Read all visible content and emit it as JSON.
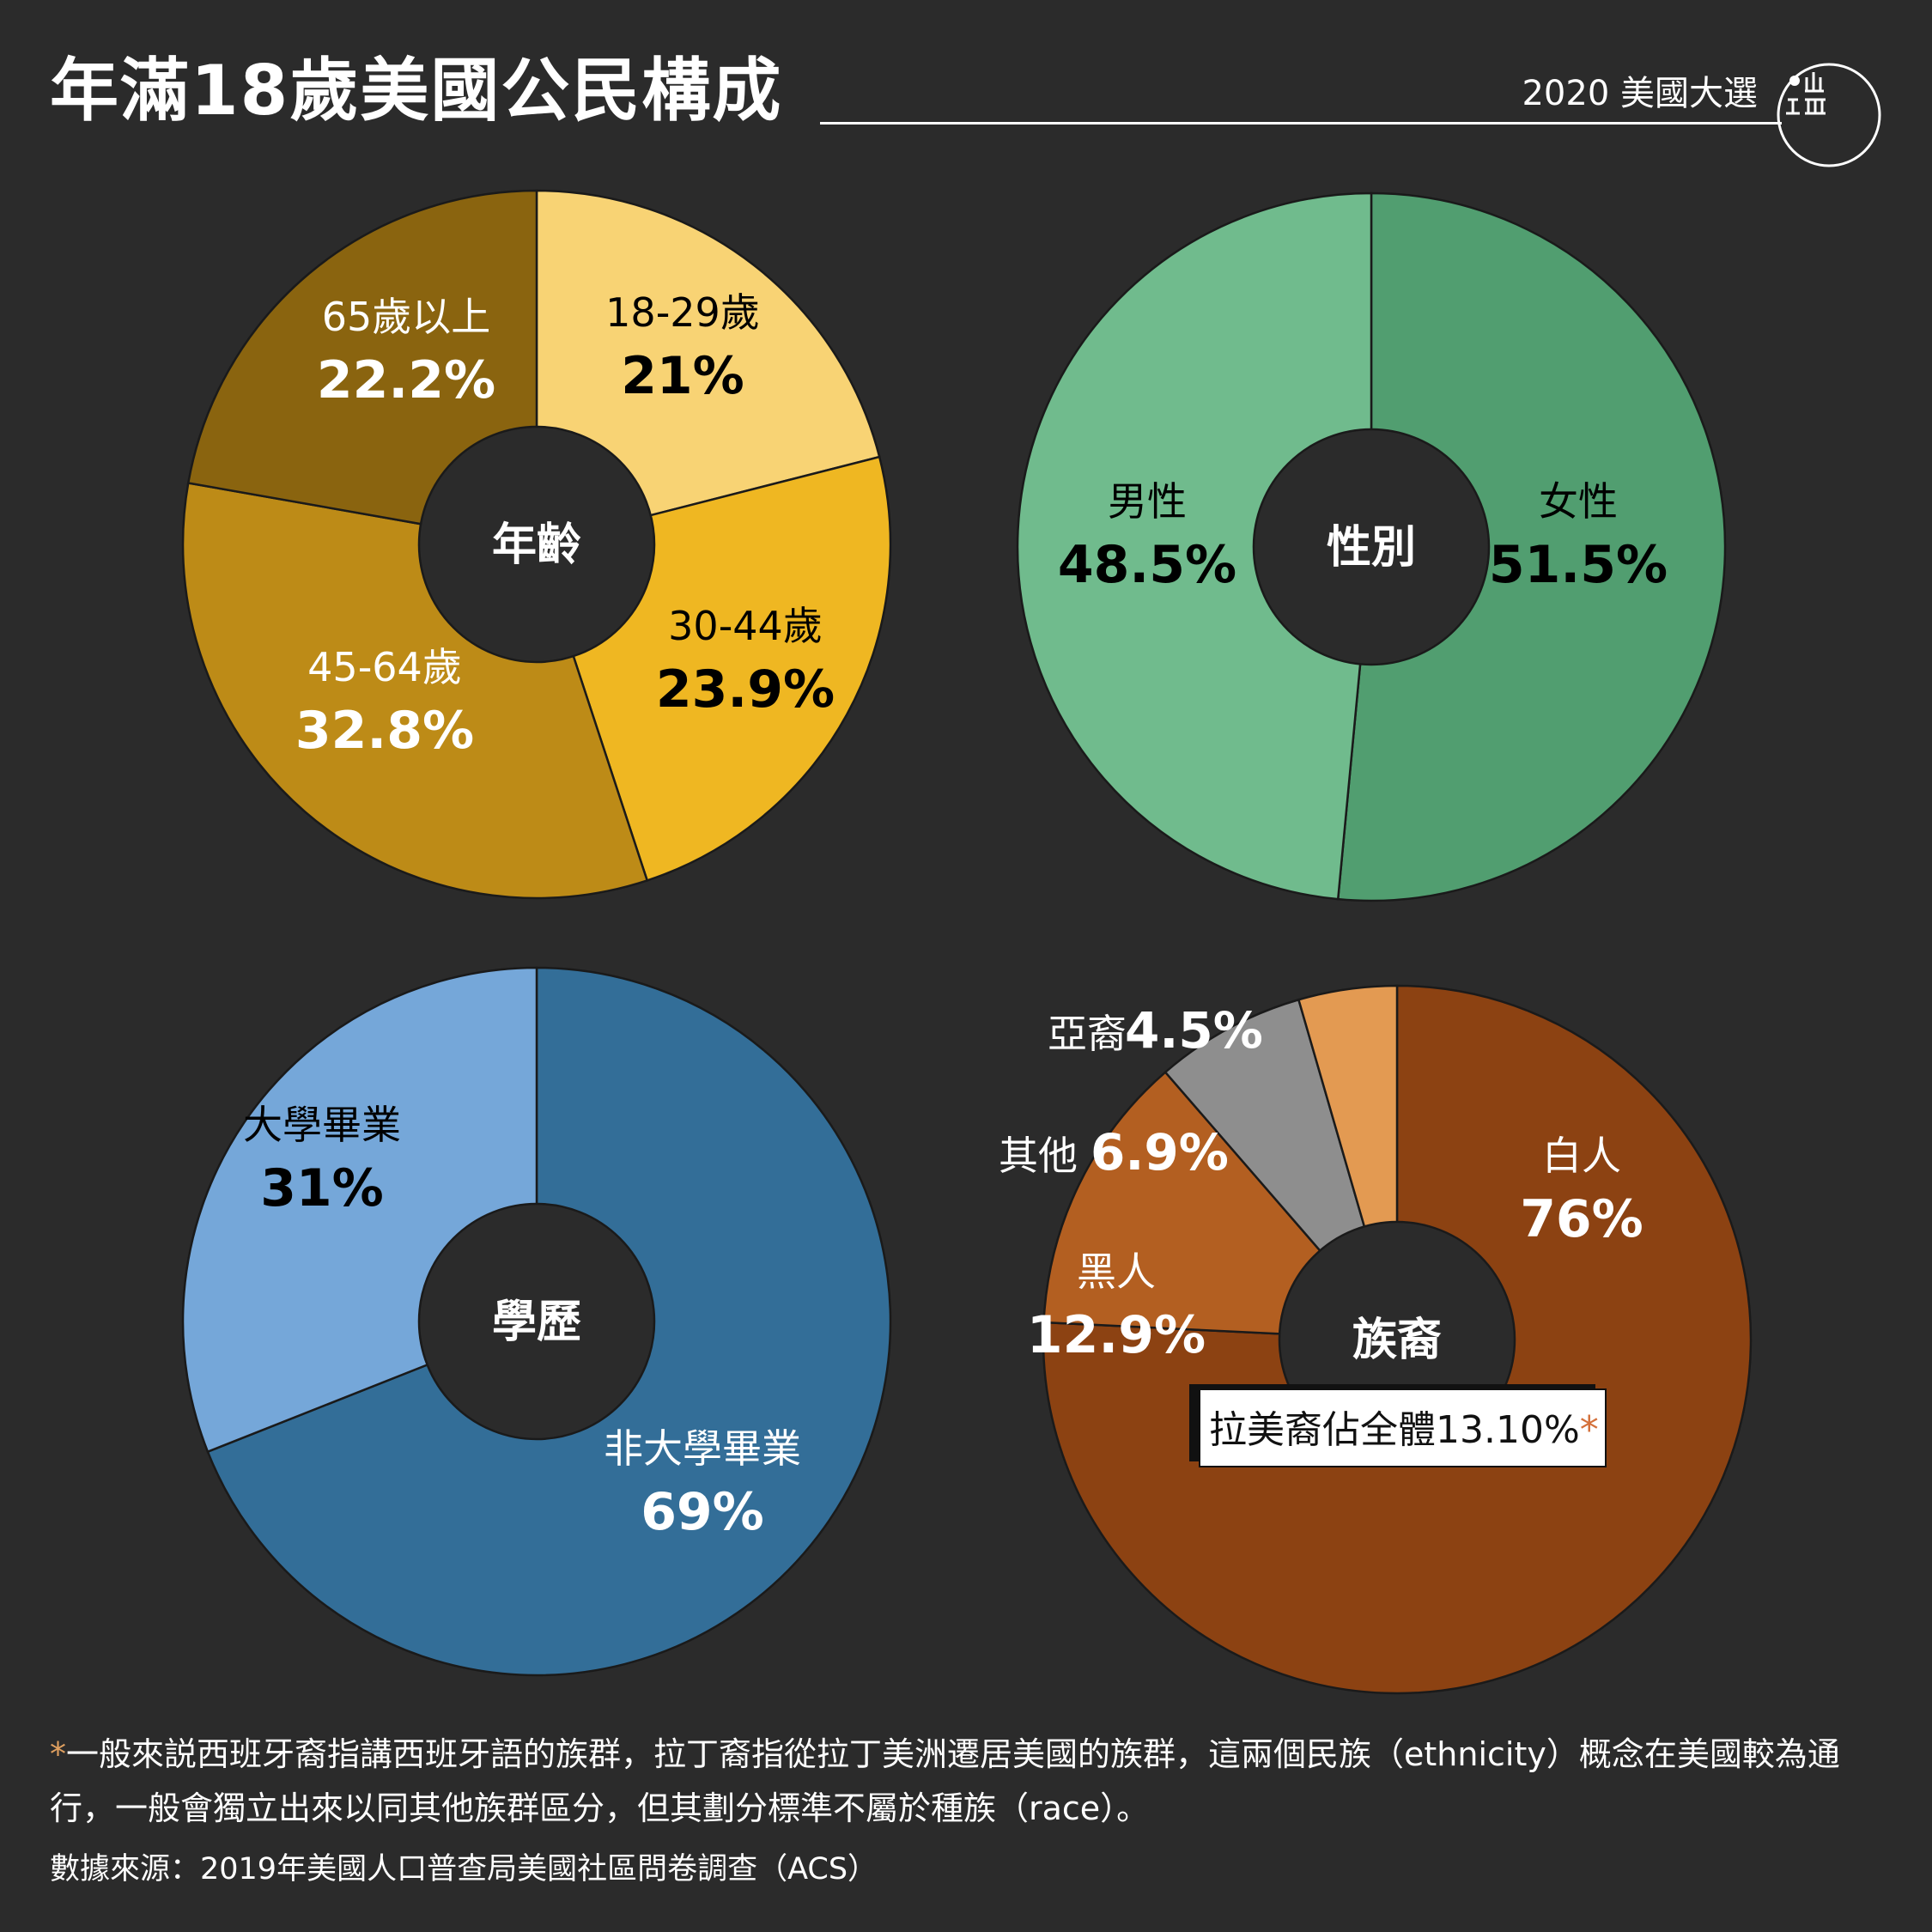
{
  "header": {
    "title": "年滿18歲美國公民構成",
    "edition": "2020 美國大選",
    "logo_icon": "initium-logo-icon"
  },
  "chart_data": [
    {
      "type": "pie",
      "center_label": "年齡",
      "categories": [
        "18-29歲",
        "30-44歲",
        "45-64歲",
        "65歲以上"
      ],
      "values": [
        21,
        23.9,
        32.8,
        22.2
      ],
      "value_labels": [
        "21%",
        "23.9%",
        "32.8%",
        "22.2%"
      ],
      "colors": [
        "#f8d374",
        "#efb722",
        "#bd8b17",
        "#8a640f"
      ],
      "label_colors": [
        "#000000",
        "#000000",
        "#ffffff",
        "#ffffff"
      ]
    },
    {
      "type": "pie",
      "center_label": "性別",
      "categories": [
        "女性",
        "男性"
      ],
      "values": [
        51.5,
        48.5
      ],
      "value_labels": [
        "51.5%",
        "48.5%"
      ],
      "colors": [
        "#519e70",
        "#70bb8d"
      ],
      "label_colors": [
        "#000000",
        "#000000"
      ]
    },
    {
      "type": "pie",
      "center_label": "學歷",
      "categories": [
        "非大學畢業",
        "大學畢業"
      ],
      "values": [
        69,
        31
      ],
      "value_labels": [
        "69%",
        "31%"
      ],
      "colors": [
        "#336e98",
        "#75a7d9"
      ],
      "label_colors": [
        "#ffffff",
        "#000000"
      ]
    },
    {
      "type": "pie",
      "center_label": "族裔",
      "categories": [
        "白人",
        "黑人",
        "其他",
        "亞裔"
      ],
      "values": [
        76,
        12.9,
        6.9,
        4.5
      ],
      "value_labels": [
        "76%",
        "12.9%",
        "6.9%",
        "4.5%"
      ],
      "colors": [
        "#8c4212",
        "#b35f21",
        "#8e8e8e",
        "#e39a52"
      ],
      "label_colors": [
        "#ffffff",
        "#ffffff",
        "#ffffff",
        "#ffffff"
      ],
      "annotation": "拉美裔佔全體13.10%",
      "annotation_marker": "*"
    }
  ],
  "footnote": {
    "marker": "*",
    "text": "一般來説西班牙裔指講西班牙語的族群，拉丁裔指從拉丁美洲遷居美國的族群，這兩個民族（ethnicity）概念在美國較為通行，一般會獨立出來以同其他族群區分，但其劃分標準不屬於種族（race）。"
  },
  "source": "數據來源：2019年美國人口普查局美國社區問卷調查（ACS）"
}
